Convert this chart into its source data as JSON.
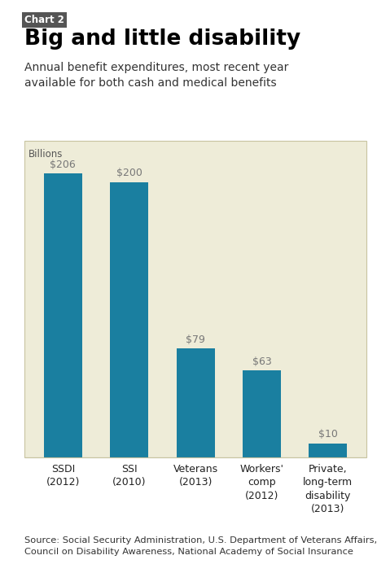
{
  "chart_label": "Chart 2",
  "title": "Big and little disability",
  "subtitle": "Annual benefit expenditures, most recent year\navailable for both cash and medical benefits",
  "axis_label": "Billions",
  "categories": [
    "SSDI\n(2012)",
    "SSI\n(2010)",
    "Veterans\n(2013)",
    "Workers'\ncomp\n(2012)",
    "Private,\nlong-term\ndisability\n(2013)"
  ],
  "values": [
    206,
    200,
    79,
    63,
    10
  ],
  "value_labels": [
    "$206",
    "$200",
    "$79",
    "$63",
    "$10"
  ],
  "bar_color": "#1a7fa0",
  "page_bg": "#ffffff",
  "chart_bg": "#eeecd8",
  "chart_border": "#c8c4a0",
  "source_text": "Source: Social Security Administration, U.S. Department of Veterans Affairs,\nCouncil on Disability Awareness, National Academy of Social Insurance",
  "ylim": [
    0,
    230
  ],
  "figsize": [
    4.64,
    7.2
  ],
  "dpi": 100
}
